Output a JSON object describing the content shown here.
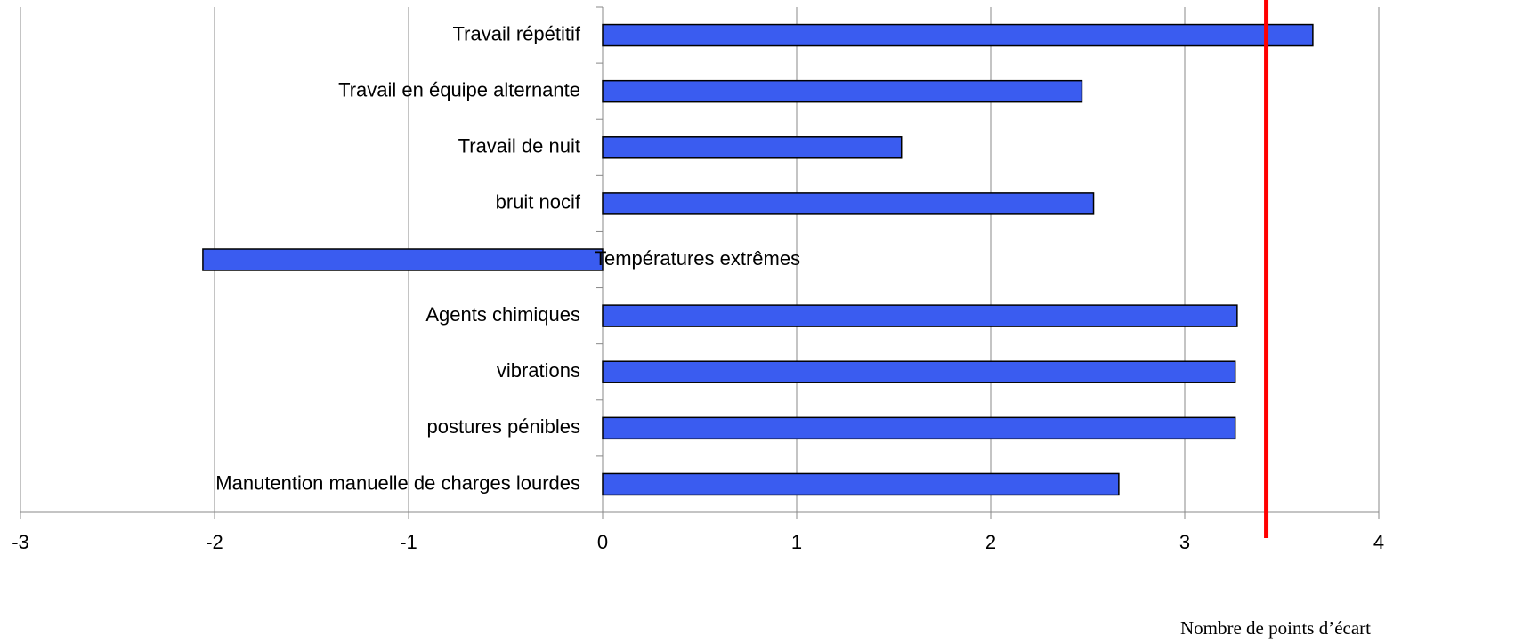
{
  "chart_data": {
    "type": "barh",
    "categories": [
      "Travail répétitif",
      "Travail en équipe alternante",
      "Travail de nuit",
      "bruit nocif",
      "Températures extrêmes",
      "Agents chimiques",
      "vibrations",
      "postures pénibles",
      "Manutention manuelle de charges lourdes"
    ],
    "values": [
      3.66,
      2.47,
      1.54,
      2.53,
      -2.06,
      3.27,
      3.26,
      3.26,
      2.66
    ],
    "color": "#3a5cf0",
    "xlim": [
      -3,
      4
    ],
    "xticks": [
      -3,
      -2,
      -1,
      0,
      1,
      2,
      3,
      4
    ],
    "grid": true,
    "x_label": "Nombre de points d’écart",
    "reference_line": {
      "value": 3.42,
      "color": "#ff0000"
    }
  }
}
